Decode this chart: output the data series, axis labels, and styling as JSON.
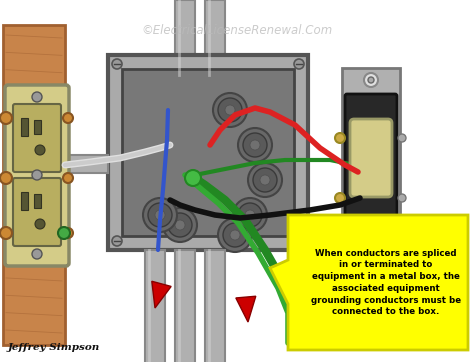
{
  "watermark": "©ElectricalLicenseRenewal.Com",
  "author": "Jeffrey Simpson",
  "callout_text": "When conductors are spliced\nin or terminated to\nequipment in a metal box, the\nassociated equipment\ngrounding conductors must be\nconnected to the box.",
  "bg_color": "#ffffff",
  "wood_color": "#c8844a",
  "wood_dark": "#a06030",
  "box_outer_color": "#909090",
  "box_inner_color": "#787878",
  "box_frame_color": "#aaaaaa",
  "conduit_color": "#b0b0b0",
  "conduit_edge": "#888888",
  "outlet_body": "#d4cc88",
  "outlet_dark": "#b8ae60",
  "outlet_slot": "#555533",
  "switch_strap": "#aaaaaa",
  "switch_body": "#282828",
  "switch_toggle": "#d4cc88",
  "callout_bg": "#ffff00",
  "callout_border": "#cccc00",
  "wire_red": "#dd2222",
  "wire_black": "#111111",
  "wire_white": "#e0e0e0",
  "wire_green": "#228822",
  "wire_blue": "#3355cc",
  "wire_green2": "#33aa33",
  "arrow_red": "#cc0000",
  "green_dot": "#44bb44",
  "screw_color": "#999999",
  "screw_edge": "#555555"
}
